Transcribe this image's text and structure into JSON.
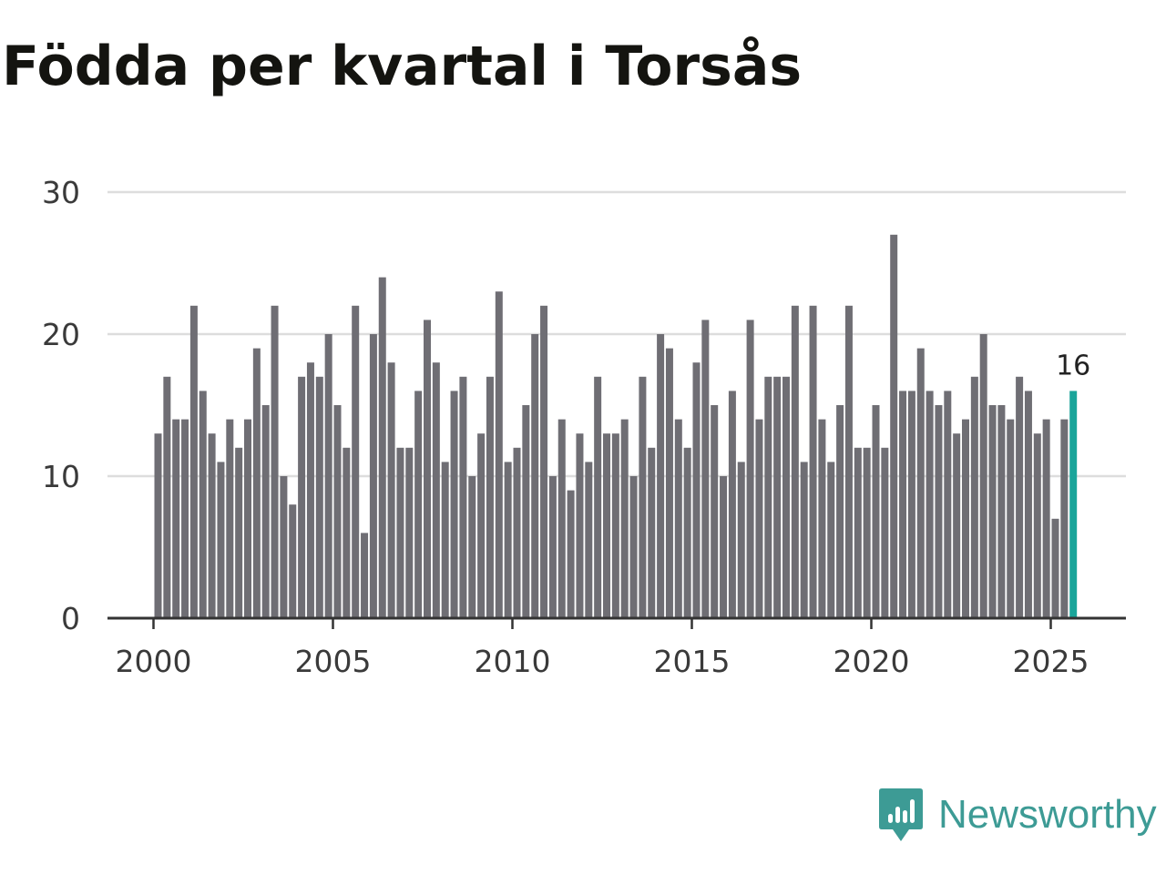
{
  "chart_data": {
    "type": "bar",
    "title": "Födda per kvartal i Torsås",
    "xlabel": "",
    "ylabel": "",
    "ylim": [
      0,
      30
    ],
    "y_ticks": [
      0,
      10,
      20,
      30
    ],
    "x_ticks": [
      2000,
      2005,
      2010,
      2015,
      2020,
      2025
    ],
    "x_start": 2000,
    "series": [
      {
        "name": "Födda",
        "values": [
          13,
          17,
          14,
          14,
          22,
          16,
          13,
          11,
          14,
          12,
          14,
          19,
          15,
          22,
          10,
          8,
          17,
          18,
          17,
          20,
          15,
          12,
          22,
          6,
          20,
          24,
          18,
          12,
          12,
          16,
          21,
          18,
          11,
          16,
          17,
          10,
          13,
          17,
          23,
          11,
          12,
          15,
          20,
          22,
          10,
          14,
          9,
          13,
          11,
          17,
          13,
          13,
          14,
          10,
          17,
          12,
          20,
          19,
          14,
          12,
          18,
          21,
          15,
          10,
          16,
          11,
          21,
          14,
          17,
          17,
          17,
          22,
          11,
          22,
          14,
          11,
          15,
          22,
          12,
          12,
          15,
          12,
          27,
          16,
          16,
          19,
          16,
          15,
          16,
          13,
          14,
          17,
          20,
          15,
          15,
          14,
          17,
          16,
          13,
          14,
          7,
          14,
          16
        ]
      }
    ],
    "highlight_last": true,
    "last_value_label": "16",
    "colors": {
      "bar": "#6f6e74",
      "highlight": "#1aa59a",
      "grid": "#dddddd",
      "axis": "#333333"
    }
  },
  "brand": {
    "name": "Newsworthy",
    "color": "#3d9b95"
  }
}
